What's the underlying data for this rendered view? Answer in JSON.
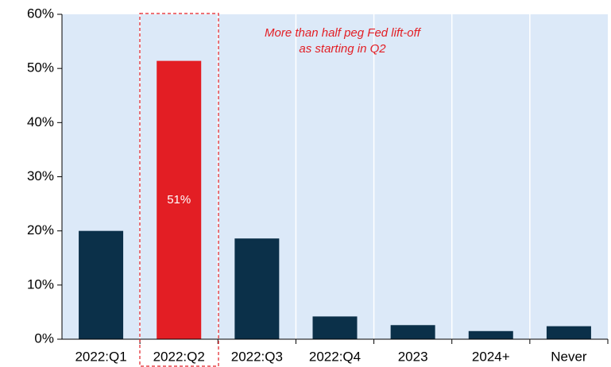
{
  "chart_data": {
    "type": "bar",
    "annotation": [
      "More than half peg Fed lift-off",
      "as starting in Q2"
    ],
    "categories": [
      "2022:Q1",
      "2022:Q2",
      "2022:Q3",
      "2022:Q4",
      "2023",
      "2024+",
      "Never"
    ],
    "values": [
      20,
      51.4,
      18.6,
      4.2,
      2.6,
      1.5,
      2.4
    ],
    "value_labels": [
      null,
      "51%",
      null,
      null,
      null,
      null,
      null
    ],
    "colors": [
      "#0b3049",
      "#e31e24",
      "#0b3049",
      "#0b3049",
      "#0b3049",
      "#0b3049",
      "#0b3049"
    ],
    "annotation_color": "#e31e24",
    "background": "#dce9f8",
    "ylim": [
      0,
      60
    ],
    "yticks": [
      {
        "value": 0,
        "label": "0%"
      },
      {
        "value": 10,
        "label": "10%"
      },
      {
        "value": 20,
        "label": "20%"
      },
      {
        "value": 30,
        "label": "30%"
      },
      {
        "value": 40,
        "label": "40%"
      },
      {
        "value": 50,
        "label": "50%"
      },
      {
        "value": 60,
        "label": "60%"
      }
    ]
  }
}
